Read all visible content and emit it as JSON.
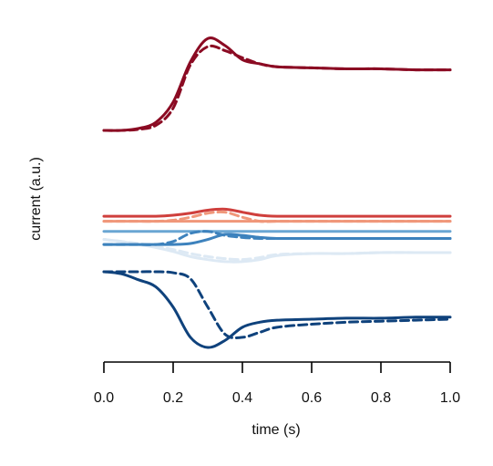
{
  "chart_data": {
    "type": "line",
    "title": "",
    "xlabel": "time (s)",
    "ylabel": "current (a.u.)",
    "xlim": [
      0,
      1
    ],
    "ylim": [
      -1.05,
      1.0
    ],
    "xticks": [
      "0.0",
      "0.2",
      "0.4",
      "0.6",
      "0.8",
      "1.0"
    ],
    "xtick_values": [
      0,
      0.2,
      0.4,
      0.6,
      0.8,
      1.0
    ],
    "yaxis_visible": false,
    "grid": false,
    "legend": "none",
    "x": [
      0,
      0.05,
      0.1,
      0.15,
      0.2,
      0.25,
      0.3,
      0.35,
      0.4,
      0.45,
      0.5,
      0.6,
      0.7,
      0.8,
      0.9,
      1.0
    ],
    "series": [
      {
        "color": "#8b0b23",
        "style": "solid",
        "values": [
          0.0,
          0.0,
          0.02,
          0.08,
          0.28,
          0.68,
          0.91,
          0.84,
          0.7,
          0.66,
          0.63,
          0.62,
          0.61,
          0.61,
          0.6,
          0.6
        ]
      },
      {
        "color": "#8b0b23",
        "style": "dashed",
        "values": [
          0.0,
          0.0,
          0.01,
          0.05,
          0.22,
          0.65,
          0.83,
          0.79,
          0.72,
          0.66,
          0.63,
          0.62,
          0.61,
          0.61,
          0.6,
          0.6
        ]
      },
      {
        "color": "#cf3f3c",
        "style": "solid",
        "values": [
          -0.85,
          -0.85,
          -0.85,
          -0.85,
          -0.84,
          -0.82,
          -0.79,
          -0.78,
          -0.81,
          -0.84,
          -0.85,
          -0.85,
          -0.85,
          -0.85,
          -0.85,
          -0.85
        ]
      },
      {
        "color": "#f0977a",
        "style": "solid",
        "values": [
          -0.9,
          -0.9,
          -0.9,
          -0.9,
          -0.9,
          -0.9,
          -0.9,
          -0.9,
          -0.9,
          -0.9,
          -0.9,
          -0.9,
          -0.9,
          -0.9,
          -0.9,
          -0.9
        ]
      },
      {
        "color": "#f0977a",
        "style": "dashed",
        "values": [
          -0.9,
          -0.9,
          -0.9,
          -0.9,
          -0.89,
          -0.86,
          -0.82,
          -0.81,
          -0.86,
          -0.9,
          -0.9,
          -0.9,
          -0.9,
          -0.9,
          -0.9,
          -0.9
        ]
      },
      {
        "color": "#6aa6d3",
        "style": "solid",
        "values": [
          -1.0,
          -1.0,
          -1.0,
          -1.0,
          -1.0,
          -1.0,
          -1.0,
          -1.0,
          -1.0,
          -1.0,
          -1.0,
          -1.0,
          -1.0,
          -1.0,
          -1.0,
          -1.0
        ]
      },
      {
        "color": "#3d82bd",
        "style": "solid",
        "values": [
          -1.13,
          -1.13,
          -1.13,
          -1.13,
          -1.13,
          -1.12,
          -1.08,
          -1.03,
          -1.04,
          -1.06,
          -1.07,
          -1.07,
          -1.07,
          -1.07,
          -1.07,
          -1.07
        ]
      },
      {
        "color": "#3d82bd",
        "style": "dashed",
        "values": [
          -1.13,
          -1.13,
          -1.13,
          -1.13,
          -1.1,
          -1.02,
          -1.0,
          -1.04,
          -1.06,
          -1.07,
          -1.07,
          -1.07,
          -1.07,
          -1.07,
          -1.07,
          -1.07
        ]
      },
      {
        "color": "#dde9f4",
        "style": "solid",
        "values": [
          -1.08,
          -1.1,
          -1.13,
          -1.16,
          -1.2,
          -1.25,
          -1.28,
          -1.3,
          -1.3,
          -1.28,
          -1.24,
          -1.22,
          -1.22,
          -1.21,
          -1.21,
          -1.21
        ]
      },
      {
        "color": "#dde9f4",
        "style": "dashed",
        "values": [
          -1.08,
          -1.1,
          -1.12,
          -1.15,
          -1.18,
          -1.22,
          -1.25,
          -1.27,
          -1.28,
          -1.26,
          -1.23,
          -1.22,
          -1.22,
          -1.21,
          -1.21,
          -1.21
        ]
      },
      {
        "color": "#0f427c",
        "style": "solid",
        "values": [
          -1.4,
          -1.42,
          -1.48,
          -1.55,
          -1.75,
          -2.05,
          -2.15,
          -2.08,
          -1.95,
          -1.9,
          -1.88,
          -1.87,
          -1.86,
          -1.86,
          -1.85,
          -1.85
        ]
      },
      {
        "color": "#0f427c",
        "style": "dashed",
        "values": [
          -1.4,
          -1.4,
          -1.4,
          -1.4,
          -1.41,
          -1.47,
          -1.75,
          -2.02,
          -2.05,
          -2.0,
          -1.95,
          -1.92,
          -1.9,
          -1.89,
          -1.88,
          -1.87
        ]
      }
    ]
  }
}
